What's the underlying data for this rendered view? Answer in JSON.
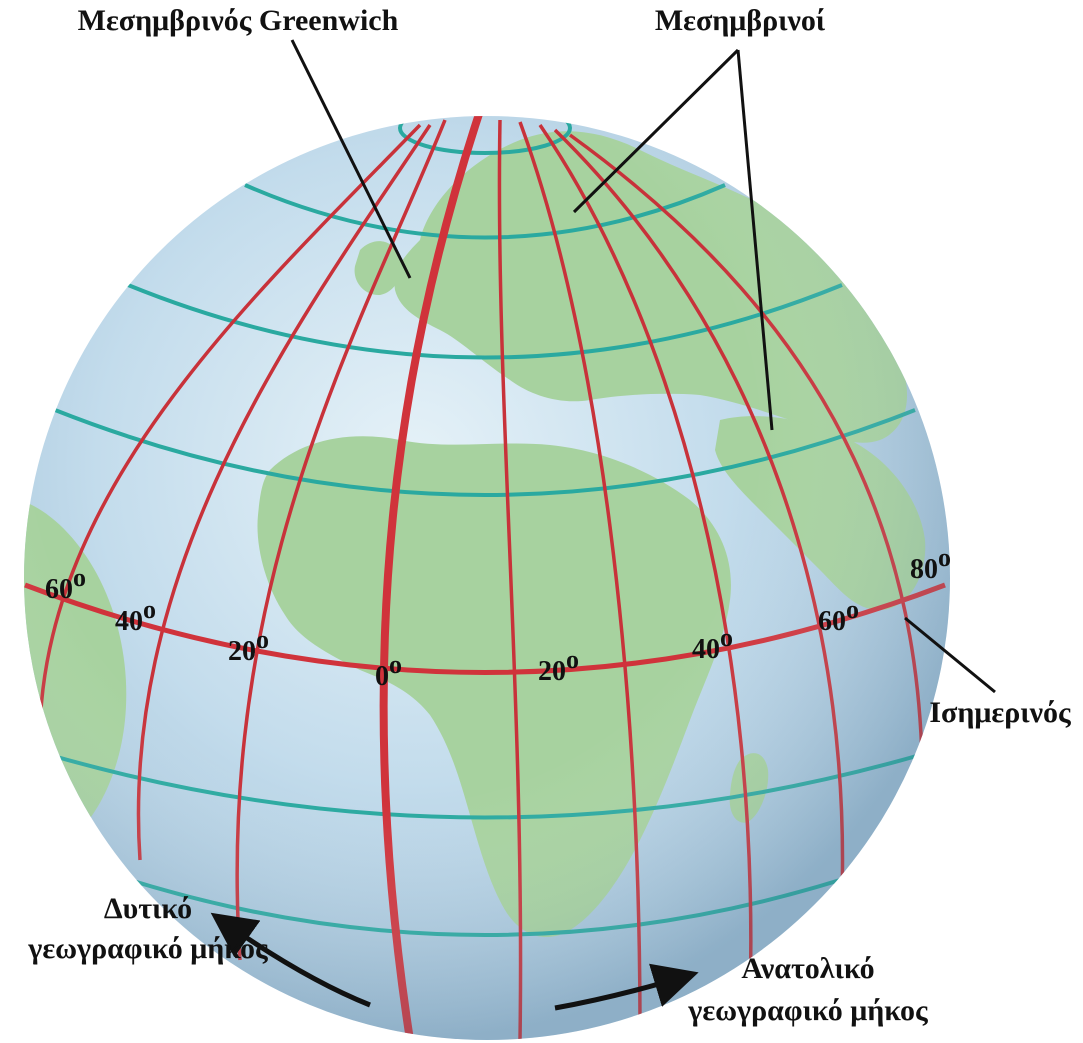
{
  "labels": {
    "greenwich_meridian": "Μεσημβρινός Greenwich",
    "meridians": "Μεσημβρινοί",
    "equator": "Ισημερινός",
    "west_longitude_line1": "Δυτικό",
    "west_longitude_line2": "γεωγραφικό μήκος",
    "east_longitude_line1": "Ανατολικό",
    "east_longitude_line2": "γεωγραφικό μήκος"
  },
  "longitude_degrees": [
    {
      "value": "60",
      "unit": "o"
    },
    {
      "value": "40",
      "unit": "o"
    },
    {
      "value": "20",
      "unit": "o"
    },
    {
      "value": "0",
      "unit": "o"
    },
    {
      "value": "20",
      "unit": "o"
    },
    {
      "value": "40",
      "unit": "o"
    },
    {
      "value": "60",
      "unit": "o"
    },
    {
      "value": "80",
      "unit": "o"
    }
  ],
  "colors": {
    "ocean": "#bcd8ea",
    "land": "#9fce9a",
    "meridian": "#c8323a",
    "parallel": "#2aa9a0",
    "text": "#111111"
  }
}
